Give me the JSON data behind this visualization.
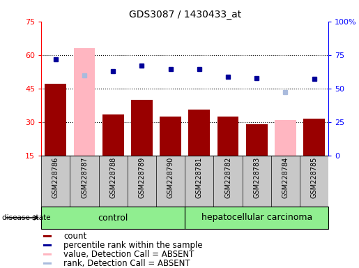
{
  "title": "GDS3087 / 1430433_at",
  "samples": [
    "GSM228786",
    "GSM228787",
    "GSM228788",
    "GSM228789",
    "GSM228790",
    "GSM228781",
    "GSM228782",
    "GSM228783",
    "GSM228784",
    "GSM228785"
  ],
  "count_values": [
    47.0,
    null,
    33.5,
    40.0,
    32.5,
    35.5,
    32.5,
    29.0,
    null,
    31.5
  ],
  "absent_count_values": [
    null,
    63.0,
    null,
    null,
    null,
    null,
    null,
    null,
    31.0,
    null
  ],
  "absent_rank_values": [
    null,
    59.5,
    null,
    null,
    null,
    null,
    null,
    null,
    47.0,
    null
  ],
  "percentile_rank": [
    71.5,
    null,
    63.0,
    67.0,
    64.5,
    64.5,
    58.5,
    57.5,
    null,
    57.0
  ],
  "left_ylim": [
    15,
    75
  ],
  "right_ylim": [
    0,
    100
  ],
  "left_yticks": [
    15,
    30,
    45,
    60,
    75
  ],
  "right_yticks": [
    0,
    25,
    50,
    75,
    100
  ],
  "right_yticklabels": [
    "0",
    "25",
    "50",
    "75",
    "100%"
  ],
  "bar_color": "#990000",
  "absent_bar_color": "#FFB6C1",
  "rank_color": "#000099",
  "absent_rank_color": "#AABBDD",
  "control_color": "#90EE90",
  "carcinoma_color": "#90EE90",
  "label_bg": "#C8C8C8",
  "dotted_lines": [
    30,
    45,
    60
  ],
  "title_fontsize": 10,
  "tick_fontsize": 8,
  "label_fontsize": 7,
  "legend_fontsize": 8.5,
  "group_fontsize": 9
}
